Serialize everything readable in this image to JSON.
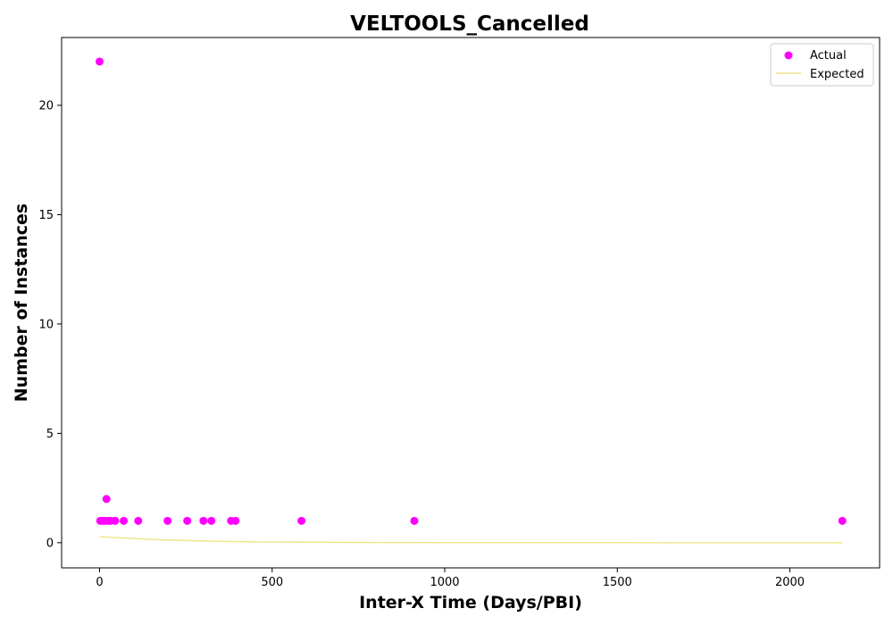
{
  "chart_data": {
    "type": "scatter",
    "title": "VELTOOLS_Cancelled",
    "xlabel": "Inter-X Time (Days/PBI)",
    "ylabel": "Number of Instances",
    "xlim": [
      -110,
      2260
    ],
    "ylim": [
      -1.15,
      23.1
    ],
    "xticks": [
      0,
      500,
      1000,
      1500,
      2000
    ],
    "yticks": [
      0,
      5,
      10,
      15,
      20
    ],
    "grid": false,
    "legend_position": "top-right",
    "colors": {
      "actual": "#ff00ff",
      "expected": "#f0e68c"
    },
    "series": [
      {
        "name": "Actual",
        "kind": "scatter",
        "x": [
          0,
          2,
          7,
          12,
          16,
          20,
          25,
          32,
          45,
          70,
          112,
          197,
          254,
          301,
          324,
          381,
          394,
          585,
          912,
          2152
        ],
        "y": [
          22,
          1,
          1,
          1,
          1,
          2,
          1,
          1,
          1,
          1,
          1,
          1,
          1,
          1,
          1,
          1,
          1,
          1,
          1,
          1
        ]
      },
      {
        "name": "Expected",
        "kind": "line",
        "x": [
          0,
          50,
          100,
          150,
          200,
          250,
          300,
          400,
          500,
          600,
          700,
          800,
          1000,
          1200,
          1500,
          1800,
          2152
        ],
        "y": [
          0.28,
          0.23,
          0.19,
          0.15,
          0.12,
          0.1,
          0.08,
          0.05,
          0.035,
          0.025,
          0.015,
          0.01,
          0.005,
          0.002,
          0.001,
          0.0005,
          0.0002
        ]
      }
    ]
  }
}
